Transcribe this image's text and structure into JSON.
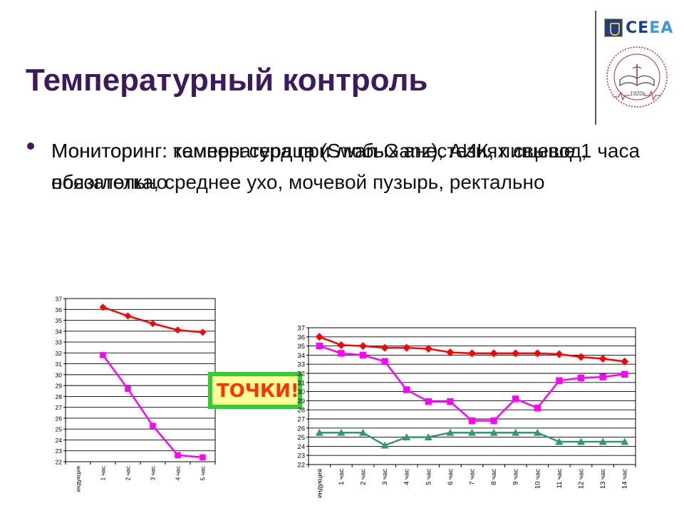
{
  "slide": {
    "title": "Температурный контроль",
    "bullet_text_a": "Мониторинг: температура при любых анестезиях свыше 1 часа обязательно",
    "bullet_text_b": "Мониторинг: камеры сердца (Swan-Ganz), АИК, пищевод, носоглотка, среднее ухо, мочевой пузырь, ректально",
    "callout_text": "ТОЧКИ!",
    "logo": {
      "name": "CEEA",
      "name_main": "CE",
      "name_accent": "EA",
      "seal_year": "1920г."
    },
    "colors": {
      "title": "#3d1a5c",
      "red": "#ff0000",
      "magenta": "#ff00ff",
      "green": "#339966",
      "callout_bg": "#ffff99",
      "callout_border": "#33cc33"
    }
  },
  "chart_data": [
    {
      "type": "line",
      "x": [
        "индукция",
        "1 час",
        "2 час",
        "3 час",
        "4 час",
        "5 час"
      ],
      "ylim": [
        22,
        37
      ],
      "yticks": [
        22,
        23,
        24,
        25,
        26,
        27,
        28,
        29,
        30,
        31,
        32,
        33,
        34,
        35,
        36,
        37
      ],
      "grid": true,
      "series": [
        {
          "color": "#ff0000",
          "marker": "diamond",
          "values": [
            null,
            36.2,
            35.4,
            34.7,
            34.1,
            33.9
          ]
        },
        {
          "color": "#ff00ff",
          "marker": "square",
          "values": [
            null,
            31.8,
            28.7,
            25.3,
            22.6,
            22.4
          ]
        }
      ]
    },
    {
      "type": "line",
      "x": [
        "индукция",
        "1 час",
        "2 час",
        "3 час",
        "4 час",
        "5 час",
        "6 час",
        "7 час",
        "8 час",
        "9 час",
        "10 час",
        "11 час",
        "12 час",
        "13 час",
        "14 час"
      ],
      "ylim": [
        22,
        37
      ],
      "yticks": [
        22,
        23,
        24,
        25,
        26,
        27,
        28,
        29,
        30,
        31,
        32,
        33,
        34,
        35,
        36,
        37
      ],
      "grid": true,
      "series": [
        {
          "color": "#ff0000",
          "marker": "diamond",
          "values": [
            36.0,
            35.1,
            35.0,
            34.8,
            34.8,
            34.7,
            34.3,
            34.2,
            34.2,
            34.2,
            34.2,
            34.1,
            33.8,
            33.6,
            33.3
          ]
        },
        {
          "color": "#ff00ff",
          "marker": "square",
          "values": [
            35.0,
            34.2,
            34.0,
            33.3,
            30.2,
            28.9,
            28.9,
            26.8,
            26.8,
            29.2,
            28.2,
            31.2,
            31.5,
            31.6,
            31.9
          ]
        },
        {
          "color": "#339966",
          "marker": "triangle",
          "values": [
            25.5,
            25.5,
            25.5,
            24.1,
            25.0,
            25.0,
            25.5,
            25.5,
            25.5,
            25.5,
            25.5,
            24.5,
            24.5,
            24.5,
            24.5
          ]
        }
      ]
    }
  ]
}
